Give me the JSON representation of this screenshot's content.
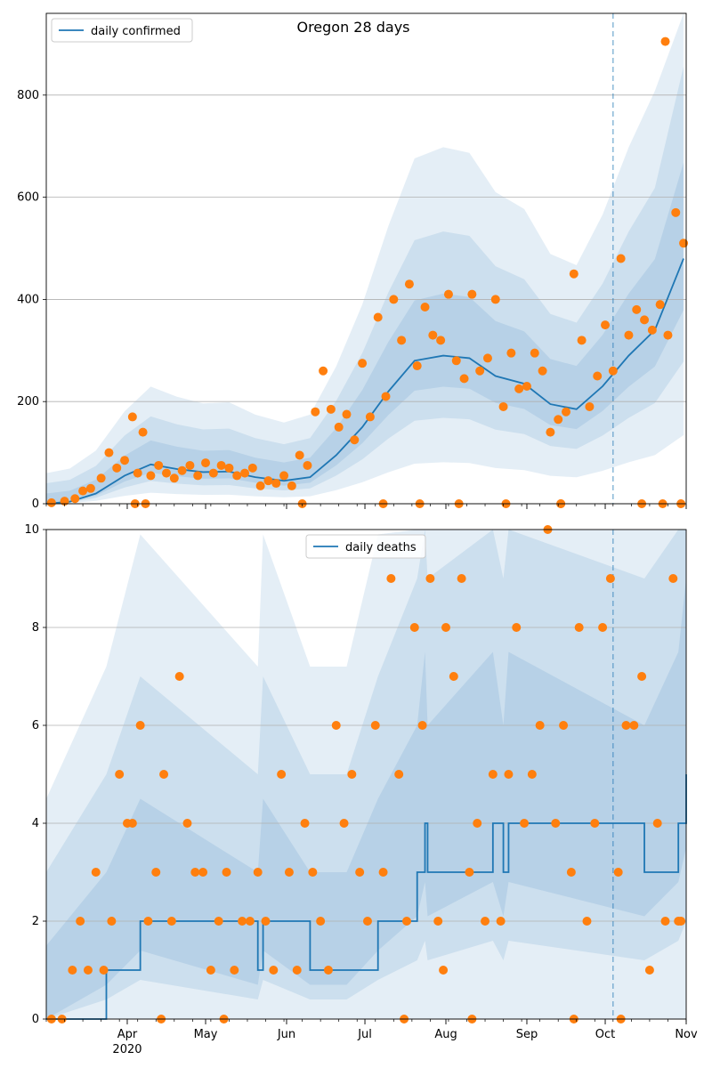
{
  "colors": {
    "line": "#1f77b4",
    "points": "#ff7f0e",
    "band": "#1f77b4",
    "grid": "#b0b0b0"
  },
  "x_axis": {
    "labels": [
      {
        "date": "2020-04-01",
        "text": "Apr",
        "sub": "2020"
      },
      {
        "date": "2020-05-01",
        "text": "May"
      },
      {
        "date": "2020-06-01",
        "text": "Jun"
      },
      {
        "date": "2020-07-01",
        "text": "Jul"
      },
      {
        "date": "2020-08-01",
        "text": "Aug"
      },
      {
        "date": "2020-09-01",
        "text": "Sep"
      },
      {
        "date": "2020-10-01",
        "text": "Oct"
      },
      {
        "date": "2020-11-01",
        "text": "Nov"
      }
    ],
    "start": "2020-03-01",
    "end": "2020-11-01"
  },
  "chart_data": [
    {
      "type": "line",
      "title": "Oregon 28 days",
      "legend": {
        "label": "daily confirmed",
        "position": "top-left"
      },
      "ylim": [
        0,
        960
      ],
      "yticks": [
        0,
        200,
        400,
        600,
        800
      ],
      "grid": true,
      "vline": "2020-10-04",
      "series": [
        {
          "name": "daily confirmed",
          "kind": "line",
          "x": [
            "2020-03-01",
            "2020-03-10",
            "2020-03-20",
            "2020-03-31",
            "2020-04-10",
            "2020-04-20",
            "2020-04-30",
            "2020-05-10",
            "2020-05-20",
            "2020-05-31",
            "2020-06-10",
            "2020-06-20",
            "2020-06-30",
            "2020-07-10",
            "2020-07-20",
            "2020-07-31",
            "2020-08-10",
            "2020-08-20",
            "2020-08-31",
            "2020-09-10",
            "2020-09-20",
            "2020-09-30",
            "2020-10-10",
            "2020-10-20",
            "2020-10-31"
          ],
          "values": [
            0,
            4,
            20,
            55,
            77,
            68,
            62,
            63,
            52,
            45,
            52,
            95,
            150,
            220,
            280,
            290,
            285,
            250,
            235,
            195,
            185,
            230,
            290,
            340,
            480
          ]
        },
        {
          "name": "observed",
          "kind": "scatter",
          "x": [
            "2020-03-03",
            "2020-03-08",
            "2020-03-12",
            "2020-03-15",
            "2020-03-18",
            "2020-03-22",
            "2020-03-25",
            "2020-03-28",
            "2020-03-31",
            "2020-04-03",
            "2020-04-05",
            "2020-04-07",
            "2020-04-10",
            "2020-04-13",
            "2020-04-16",
            "2020-04-19",
            "2020-04-22",
            "2020-04-25",
            "2020-04-28",
            "2020-05-01",
            "2020-05-04",
            "2020-05-07",
            "2020-05-10",
            "2020-05-13",
            "2020-05-16",
            "2020-05-19",
            "2020-05-22",
            "2020-05-25",
            "2020-05-28",
            "2020-05-31",
            "2020-06-03",
            "2020-06-06",
            "2020-06-09",
            "2020-06-12",
            "2020-06-15",
            "2020-06-18",
            "2020-06-21",
            "2020-06-24",
            "2020-06-27",
            "2020-06-30",
            "2020-07-03",
            "2020-07-06",
            "2020-07-09",
            "2020-07-12",
            "2020-07-15",
            "2020-07-18",
            "2020-07-21",
            "2020-07-24",
            "2020-07-27",
            "2020-07-30",
            "2020-08-02",
            "2020-08-05",
            "2020-08-08",
            "2020-08-11",
            "2020-08-14",
            "2020-08-17",
            "2020-08-20",
            "2020-08-23",
            "2020-08-26",
            "2020-08-29",
            "2020-09-01",
            "2020-09-04",
            "2020-09-07",
            "2020-09-10",
            "2020-09-13",
            "2020-09-16",
            "2020-09-19",
            "2020-09-22",
            "2020-09-25",
            "2020-09-28",
            "2020-10-01",
            "2020-10-04",
            "2020-10-07",
            "2020-10-10",
            "2020-10-13",
            "2020-10-16",
            "2020-10-19",
            "2020-10-22",
            "2020-10-25",
            "2020-10-28",
            "2020-10-31",
            "2020-04-04",
            "2020-04-08",
            "2020-06-07",
            "2020-07-08",
            "2020-07-22",
            "2020-08-06",
            "2020-08-24",
            "2020-09-14",
            "2020-10-15",
            "2020-10-23",
            "2020-10-30",
            "2020-09-14",
            "2020-10-24"
          ],
          "values": [
            2,
            5,
            10,
            25,
            30,
            50,
            100,
            70,
            85,
            170,
            60,
            140,
            55,
            75,
            60,
            50,
            65,
            75,
            55,
            80,
            60,
            75,
            70,
            55,
            60,
            70,
            35,
            45,
            40,
            55,
            35,
            95,
            75,
            180,
            260,
            185,
            150,
            175,
            125,
            275,
            170,
            365,
            210,
            400,
            320,
            430,
            270,
            385,
            330,
            320,
            410,
            280,
            245,
            410,
            260,
            285,
            400,
            190,
            295,
            225,
            230,
            295,
            260,
            140,
            165,
            180,
            450,
            320,
            190,
            250,
            350,
            260,
            480,
            330,
            380,
            360,
            340,
            390,
            330,
            570,
            510,
            0,
            0,
            0,
            0,
            0,
            0,
            0,
            0,
            0,
            0,
            0,
            0,
            905
          ]
        }
      ]
    },
    {
      "type": "line",
      "title": "",
      "legend": {
        "label": "daily deaths",
        "position": "top-center"
      },
      "ylim": [
        0,
        10
      ],
      "yticks": [
        0,
        2,
        4,
        6,
        8,
        10
      ],
      "grid": true,
      "vline": "2020-10-04",
      "series": [
        {
          "name": "daily deaths",
          "kind": "step",
          "x": [
            "2020-03-01",
            "2020-03-24",
            "2020-04-06",
            "2020-05-21",
            "2020-05-23",
            "2020-06-10",
            "2020-06-24",
            "2020-07-06",
            "2020-07-21",
            "2020-07-24",
            "2020-07-25",
            "2020-08-19",
            "2020-08-23",
            "2020-08-25",
            "2020-10-16",
            "2020-10-29",
            "2020-11-01"
          ],
          "values": [
            0,
            1,
            2,
            1,
            2,
            1,
            1,
            2,
            3,
            4,
            3,
            4,
            3,
            4,
            3,
            4,
            5
          ]
        },
        {
          "name": "observed",
          "kind": "scatter",
          "x": [
            "2020-03-03",
            "2020-03-07",
            "2020-03-11",
            "2020-03-14",
            "2020-03-17",
            "2020-03-20",
            "2020-03-23",
            "2020-03-26",
            "2020-03-29",
            "2020-04-01",
            "2020-04-03",
            "2020-04-06",
            "2020-04-09",
            "2020-04-12",
            "2020-04-15",
            "2020-04-18",
            "2020-04-21",
            "2020-04-24",
            "2020-04-27",
            "2020-04-30",
            "2020-05-03",
            "2020-05-06",
            "2020-05-09",
            "2020-05-12",
            "2020-05-15",
            "2020-05-18",
            "2020-05-21",
            "2020-05-24",
            "2020-05-27",
            "2020-05-30",
            "2020-06-02",
            "2020-06-05",
            "2020-06-08",
            "2020-06-11",
            "2020-06-14",
            "2020-06-17",
            "2020-06-20",
            "2020-06-23",
            "2020-06-26",
            "2020-06-29",
            "2020-07-02",
            "2020-07-05",
            "2020-07-08",
            "2020-07-11",
            "2020-07-14",
            "2020-07-17",
            "2020-07-20",
            "2020-07-23",
            "2020-07-26",
            "2020-07-29",
            "2020-08-01",
            "2020-08-04",
            "2020-08-07",
            "2020-08-10",
            "2020-08-13",
            "2020-08-16",
            "2020-08-19",
            "2020-08-22",
            "2020-08-25",
            "2020-08-28",
            "2020-08-31",
            "2020-09-03",
            "2020-09-06",
            "2020-09-09",
            "2020-09-12",
            "2020-09-15",
            "2020-09-18",
            "2020-09-21",
            "2020-09-24",
            "2020-09-27",
            "2020-09-30",
            "2020-10-03",
            "2020-10-06",
            "2020-10-09",
            "2020-10-12",
            "2020-10-15",
            "2020-10-18",
            "2020-10-21",
            "2020-10-24",
            "2020-10-27",
            "2020-10-30",
            "2020-04-14",
            "2020-05-08",
            "2020-07-16",
            "2020-07-31",
            "2020-08-11",
            "2020-09-19",
            "2020-10-07",
            "2020-10-29"
          ],
          "values": [
            0,
            0,
            1,
            2,
            1,
            3,
            1,
            2,
            5,
            4,
            4,
            6,
            2,
            3,
            5,
            2,
            7,
            4,
            3,
            3,
            1,
            2,
            3,
            1,
            2,
            2,
            3,
            2,
            1,
            5,
            3,
            1,
            4,
            3,
            2,
            1,
            6,
            4,
            5,
            3,
            2,
            6,
            3,
            9,
            5,
            2,
            8,
            6,
            9,
            2,
            8,
            7,
            9,
            3,
            4,
            2,
            5,
            2,
            5,
            8,
            4,
            5,
            6,
            10,
            4,
            6,
            3,
            8,
            2,
            4,
            8,
            9,
            3,
            6,
            6,
            7,
            1,
            4,
            2,
            9,
            2,
            0,
            0,
            0,
            1,
            0,
            0,
            0,
            2
          ]
        }
      ]
    }
  ]
}
